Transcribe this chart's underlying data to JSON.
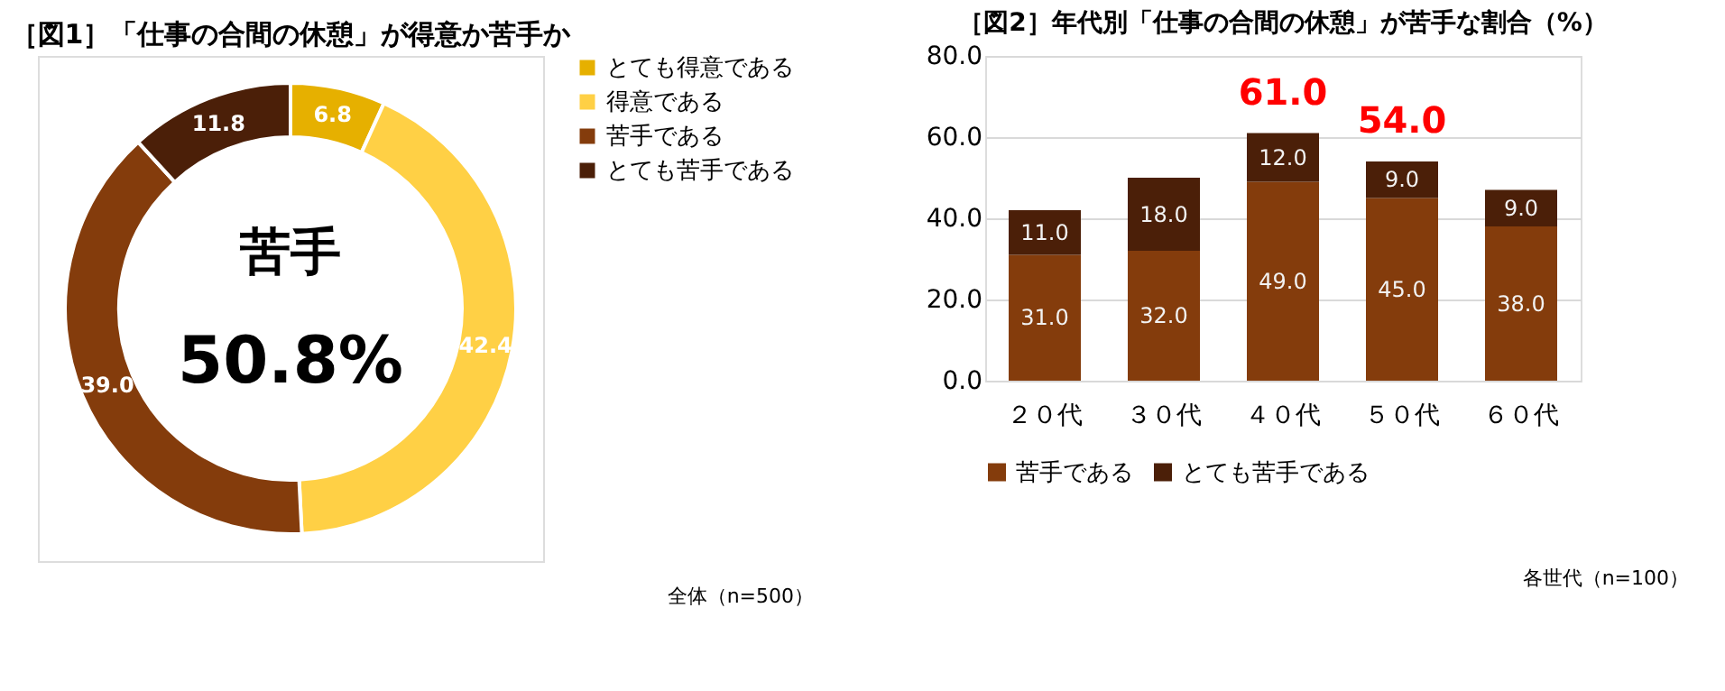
{
  "chart_data": [
    {
      "type": "donut",
      "title": "［図1］「仕事の合間の休憩」が得意か苦手か",
      "categories": [
        "とても得意である",
        "得意である",
        "苦手である",
        "とても苦手である"
      ],
      "values": [
        6.8,
        42.4,
        39.0,
        11.8
      ],
      "value_labels": [
        "6.8",
        "42.4",
        "39.0",
        "11.8"
      ],
      "colors": [
        "#e6b000",
        "#ffd045",
        "#843c0c",
        "#4b1f08"
      ],
      "legend": "right",
      "annotations": [
        "苦手",
        "50.8%",
        "全体（n=500）"
      ]
    },
    {
      "type": "bar",
      "title": "［図2］年代別「仕事の合間の休憩」が苦手な割合（%）",
      "stacked": true,
      "categories": [
        "２０代",
        "３０代",
        "４０代",
        "５０代",
        "６０代"
      ],
      "series": [
        {
          "name": "苦手である",
          "color": "#843c0c",
          "values": [
            31.0,
            32.0,
            49.0,
            45.0,
            38.0
          ],
          "value_labels": [
            "31.0",
            "32.0",
            "49.0",
            "45.0",
            "38.0"
          ]
        },
        {
          "name": "とても苦手である",
          "color": "#4b1f08",
          "values": [
            11.0,
            18.0,
            12.0,
            9.0,
            9.0
          ],
          "value_labels": [
            "11.0",
            "18.0",
            "12.0",
            "9.0",
            "9.0"
          ]
        }
      ],
      "ylim": [
        0,
        80
      ],
      "yticks": [
        {
          "value": 0,
          "label": "0.0"
        },
        {
          "value": 20,
          "label": "20.0"
        },
        {
          "value": 40,
          "label": "40.0"
        },
        {
          "value": 60,
          "label": "60.0"
        },
        {
          "value": 80,
          "label": "80.0"
        }
      ],
      "grid": "y",
      "legend": "bottom",
      "totals": [
        null,
        null,
        "61.0",
        "54.0",
        null
      ],
      "annotations": [
        "各世代（n=100）"
      ]
    }
  ]
}
